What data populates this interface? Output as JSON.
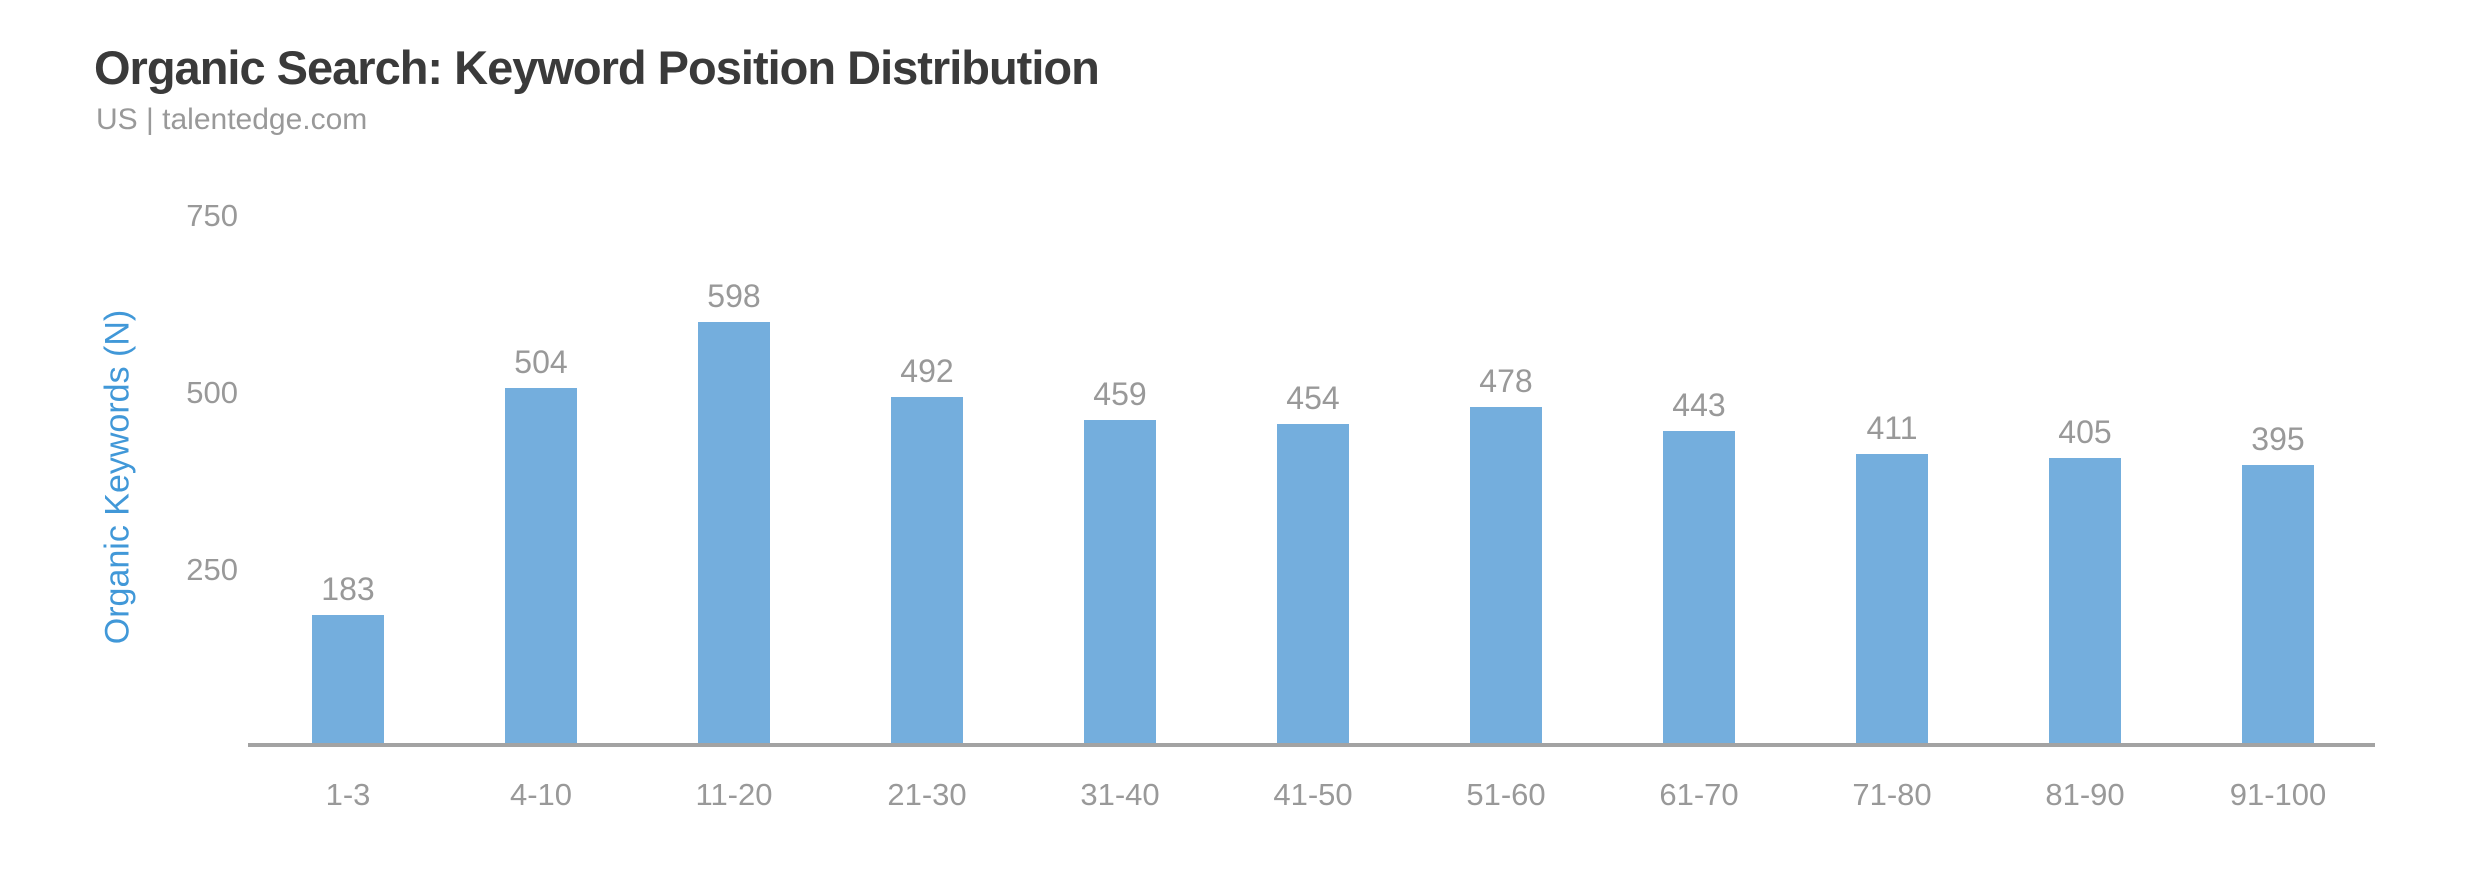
{
  "header": {
    "title": "Organic Search: Keyword Position Distribution",
    "subtitle": "US | talentedge.com"
  },
  "chart_data": {
    "type": "bar",
    "title": "Organic Search: Keyword Position Distribution",
    "subtitle": "US | talentedge.com",
    "categories": [
      "1-3",
      "4-10",
      "11-20",
      "21-30",
      "31-40",
      "41-50",
      "51-60",
      "61-70",
      "71-80",
      "81-90",
      "91-100"
    ],
    "values": [
      183,
      504,
      598,
      492,
      459,
      454,
      478,
      443,
      411,
      405,
      395
    ],
    "xlabel": "",
    "ylabel": "Organic Keywords (N)",
    "yticks": [
      250,
      500,
      750
    ],
    "ylim": [
      0,
      800
    ],
    "grid": false,
    "legend": false,
    "data_labels_shown": true,
    "colors": {
      "bar_fill": "#74aedd",
      "value_label": "#999999",
      "tick_label": "#999999",
      "axis_line": "#a3a3a3",
      "y_axis_label": "#4198d8",
      "title": "#3a3a3a",
      "subtitle": "#999999",
      "background": "#ffffff"
    }
  }
}
